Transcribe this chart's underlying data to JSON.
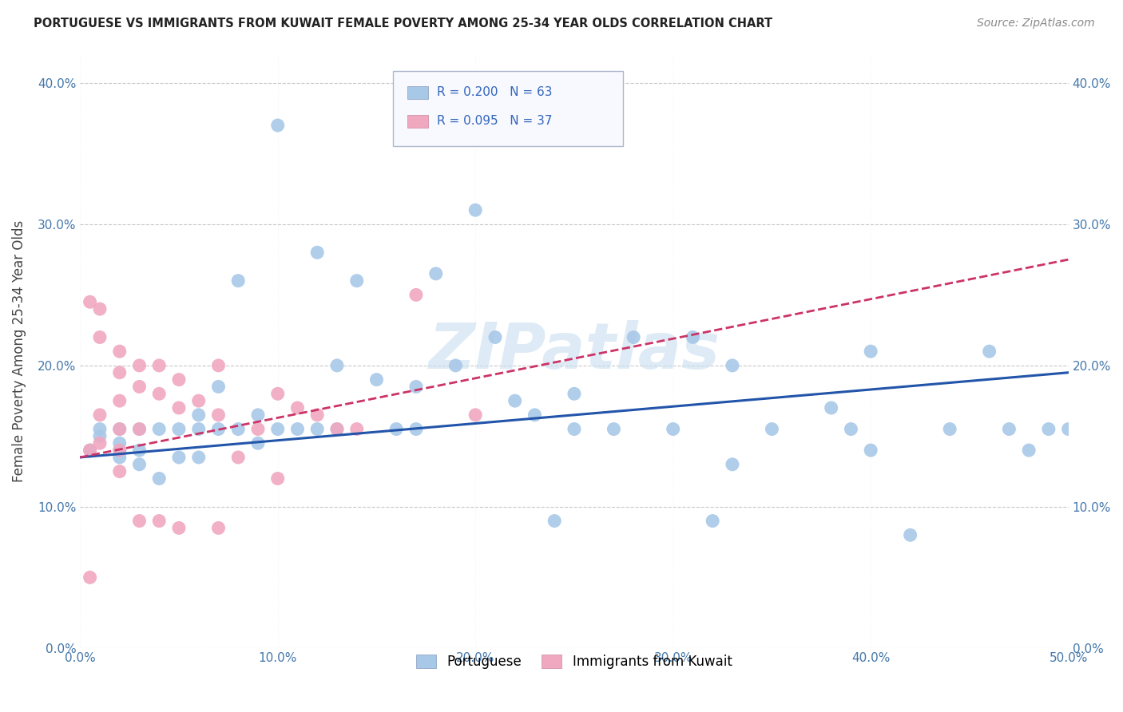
{
  "title": "PORTUGUESE VS IMMIGRANTS FROM KUWAIT FEMALE POVERTY AMONG 25-34 YEAR OLDS CORRELATION CHART",
  "source": "Source: ZipAtlas.com",
  "ylabel": "Female Poverty Among 25-34 Year Olds",
  "xlim": [
    0.0,
    0.5
  ],
  "ylim": [
    0.0,
    0.42
  ],
  "xticks": [
    0.0,
    0.1,
    0.2,
    0.3,
    0.4,
    0.5
  ],
  "yticks": [
    0.0,
    0.1,
    0.2,
    0.3,
    0.4
  ],
  "xticklabels": [
    "0.0%",
    "10.0%",
    "20.0%",
    "30.0%",
    "40.0%",
    "50.0%"
  ],
  "yticklabels": [
    "0.0%",
    "10.0%",
    "20.0%",
    "30.0%",
    "40.0%"
  ],
  "background_color": "#ffffff",
  "grid_color": "#c8c8c8",
  "watermark": "ZIPatlas",
  "legend_R1": "0.200",
  "legend_N1": "63",
  "legend_R2": "0.095",
  "legend_N2": "37",
  "blue_color": "#a8c8e8",
  "pink_color": "#f0a8c0",
  "blue_line_color": "#2255aa",
  "pink_line_color": "#cc3366",
  "label1": "Portuguese",
  "label2": "Immigrants from Kuwait",
  "port_x": [
    0.005,
    0.01,
    0.01,
    0.02,
    0.02,
    0.02,
    0.02,
    0.03,
    0.03,
    0.03,
    0.04,
    0.04,
    0.05,
    0.05,
    0.06,
    0.06,
    0.06,
    0.07,
    0.07,
    0.08,
    0.08,
    0.09,
    0.09,
    0.1,
    0.1,
    0.11,
    0.12,
    0.12,
    0.13,
    0.13,
    0.14,
    0.15,
    0.16,
    0.17,
    0.17,
    0.18,
    0.19,
    0.2,
    0.21,
    0.22,
    0.23,
    0.24,
    0.25,
    0.25,
    0.27,
    0.28,
    0.3,
    0.31,
    0.32,
    0.33,
    0.33,
    0.35,
    0.38,
    0.39,
    0.4,
    0.4,
    0.42,
    0.44,
    0.46,
    0.47,
    0.48,
    0.49,
    0.5
  ],
  "port_y": [
    0.14,
    0.15,
    0.155,
    0.135,
    0.14,
    0.145,
    0.155,
    0.13,
    0.14,
    0.155,
    0.12,
    0.155,
    0.135,
    0.155,
    0.165,
    0.135,
    0.155,
    0.185,
    0.155,
    0.26,
    0.155,
    0.165,
    0.145,
    0.37,
    0.155,
    0.155,
    0.155,
    0.28,
    0.2,
    0.155,
    0.26,
    0.19,
    0.155,
    0.185,
    0.155,
    0.265,
    0.2,
    0.31,
    0.22,
    0.175,
    0.165,
    0.09,
    0.155,
    0.18,
    0.155,
    0.22,
    0.155,
    0.22,
    0.09,
    0.2,
    0.13,
    0.155,
    0.17,
    0.155,
    0.21,
    0.14,
    0.08,
    0.155,
    0.21,
    0.155,
    0.14,
    0.155,
    0.155
  ],
  "kuw_x": [
    0.005,
    0.005,
    0.005,
    0.01,
    0.01,
    0.01,
    0.01,
    0.02,
    0.02,
    0.02,
    0.02,
    0.02,
    0.02,
    0.03,
    0.03,
    0.03,
    0.03,
    0.04,
    0.04,
    0.04,
    0.05,
    0.05,
    0.05,
    0.06,
    0.07,
    0.07,
    0.07,
    0.08,
    0.09,
    0.1,
    0.1,
    0.11,
    0.12,
    0.13,
    0.14,
    0.17,
    0.2
  ],
  "kuw_y": [
    0.245,
    0.14,
    0.05,
    0.24,
    0.22,
    0.165,
    0.145,
    0.21,
    0.195,
    0.175,
    0.155,
    0.14,
    0.125,
    0.2,
    0.185,
    0.155,
    0.09,
    0.2,
    0.18,
    0.09,
    0.19,
    0.17,
    0.085,
    0.175,
    0.2,
    0.165,
    0.085,
    0.135,
    0.155,
    0.18,
    0.12,
    0.17,
    0.165,
    0.155,
    0.155,
    0.25,
    0.165
  ]
}
